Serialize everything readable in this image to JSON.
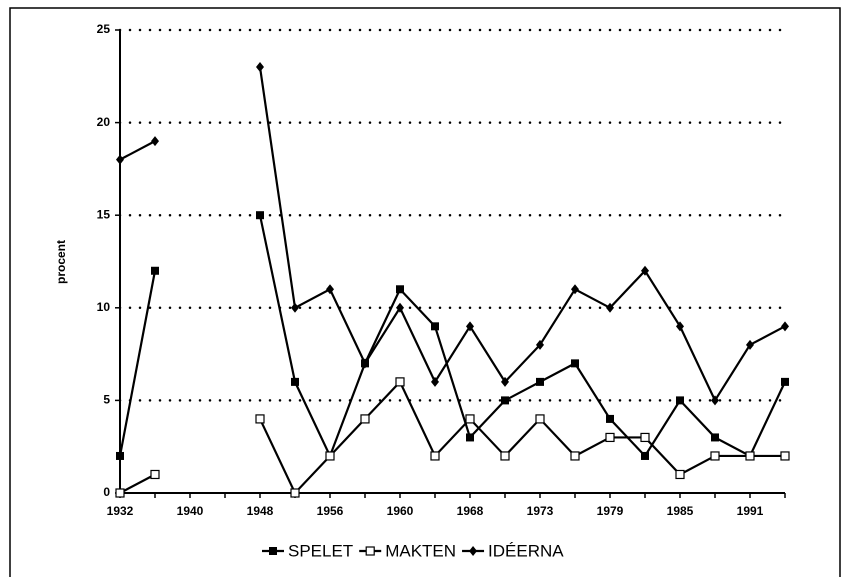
{
  "chart_data": {
    "type": "line",
    "y_label": "procent",
    "categories": [
      "1932",
      null,
      "1940",
      null,
      "1948",
      null,
      "1956",
      null,
      "1960",
      null,
      "1968",
      null,
      "1973",
      null,
      "1979",
      null,
      "1985",
      null,
      "1991",
      null
    ],
    "series": [
      {
        "name": "SPELET",
        "color": "#000000",
        "marker": "filled-square",
        "values": [
          2,
          12,
          null,
          null,
          15,
          6,
          2,
          7,
          11,
          9,
          3,
          5,
          6,
          7,
          4,
          2,
          5,
          3,
          2,
          6
        ]
      },
      {
        "name": "MAKTEN",
        "color": "#000000",
        "marker": "open-square",
        "values": [
          0,
          1,
          null,
          null,
          4,
          0,
          2,
          4,
          6,
          2,
          4,
          2,
          4,
          2,
          3,
          3,
          1,
          2,
          2,
          2
        ]
      },
      {
        "name": "IDÉERNA",
        "color": "#000000",
        "marker": "diamond",
        "values": [
          18,
          19,
          null,
          null,
          23,
          10,
          11,
          7,
          10,
          6,
          9,
          6,
          8,
          11,
          10,
          12,
          9,
          5,
          8,
          9
        ]
      }
    ],
    "ylim": [
      0,
      25
    ],
    "yticks": [
      0,
      5,
      10,
      15,
      20,
      25
    ],
    "grid": true,
    "legend": "bottom"
  }
}
